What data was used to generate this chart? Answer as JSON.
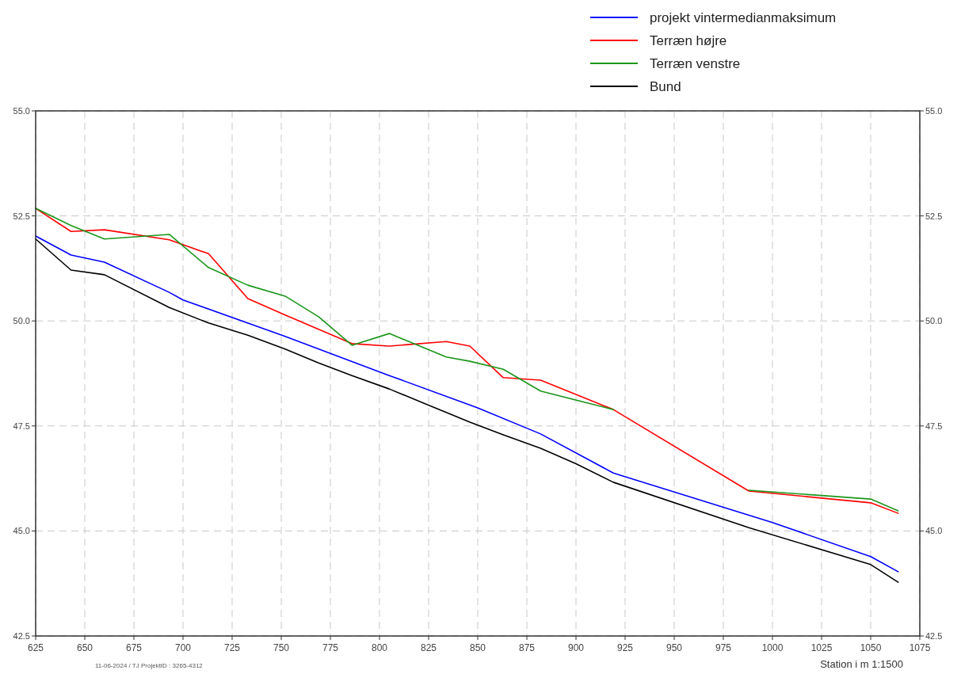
{
  "chart_data": {
    "type": "line",
    "xlabel": "Station i m  1:1500",
    "annotations": [
      "11-06-2024 / TJ  ProjektID : 3265-4312"
    ],
    "xlim": [
      625,
      1075
    ],
    "xticks": [
      625,
      650,
      675,
      700,
      725,
      750,
      775,
      800,
      825,
      850,
      875,
      900,
      925,
      950,
      975,
      1000,
      1025,
      1050,
      1075
    ],
    "ylim": [
      42.5,
      55
    ],
    "yticks": [
      {
        "value": 42.5,
        "label": "42.5"
      },
      {
        "value": 45,
        "label": "45.0"
      },
      {
        "value": 47.5,
        "label": "47.5"
      },
      {
        "value": 50,
        "label": "50.0"
      },
      {
        "value": 52.5,
        "label": "52.5"
      },
      {
        "value": 55,
        "label": "55.0"
      }
    ],
    "y2lim": [
      42.5,
      55
    ],
    "y2ticks": [
      {
        "value": 42.5,
        "label": "42.5"
      },
      {
        "value": 45,
        "label": "45.0"
      },
      {
        "value": 47.5,
        "label": "47.5"
      },
      {
        "value": 50,
        "label": "50.0"
      },
      {
        "value": 52.5,
        "label": "52.5"
      },
      {
        "value": 55,
        "label": "55.0"
      }
    ],
    "grid": true,
    "legend": "top right",
    "series": [
      {
        "name": "projekt vintermedianmaksimum",
        "color": "#0000ff",
        "x": [
          625,
          643,
          660,
          693,
          700,
          752,
          805,
          850,
          882,
          919,
          1000,
          1050,
          1064
        ],
        "values": [
          52.02,
          51.57,
          51.4,
          50.68,
          50.5,
          49.63,
          48.7,
          47.93,
          47.31,
          46.38,
          45.2,
          44.39,
          44.03
        ]
      },
      {
        "name": "Terræn højre",
        "color": "#ff0000",
        "x": [
          625,
          643,
          660,
          693,
          713,
          733,
          752,
          769,
          786,
          805,
          834,
          846,
          863,
          882,
          919,
          988,
          1050,
          1064
        ],
        "values": [
          52.68,
          52.13,
          52.17,
          51.93,
          51.6,
          50.53,
          50.14,
          49.8,
          49.46,
          49.4,
          49.51,
          49.4,
          48.65,
          48.59,
          47.89,
          45.95,
          45.67,
          45.42
        ]
      },
      {
        "name": "Terræn venstre",
        "color": "#1a961a",
        "x": [
          625,
          643,
          660,
          693,
          713,
          733,
          752,
          769,
          786,
          805,
          834,
          846,
          863,
          882,
          919,
          950,
          988,
          1050,
          1064
        ],
        "values": [
          52.68,
          52.27,
          51.95,
          52.06,
          51.27,
          50.85,
          50.59,
          50.1,
          49.42,
          49.7,
          49.14,
          49.04,
          48.85,
          48.33,
          47.89,
          null,
          45.97,
          45.76,
          45.48
        ]
      },
      {
        "name": "Bund",
        "color": "#000000",
        "x": [
          625,
          643,
          660,
          693,
          713,
          733,
          752,
          769,
          786,
          805,
          834,
          846,
          863,
          882,
          900,
          919,
          988,
          1050,
          1064
        ],
        "values": [
          51.95,
          51.21,
          51.1,
          50.32,
          49.95,
          49.66,
          49.33,
          49.0,
          48.7,
          48.38,
          47.82,
          47.59,
          47.29,
          46.97,
          46.6,
          46.16,
          45.08,
          44.2,
          43.78
        ]
      }
    ]
  }
}
